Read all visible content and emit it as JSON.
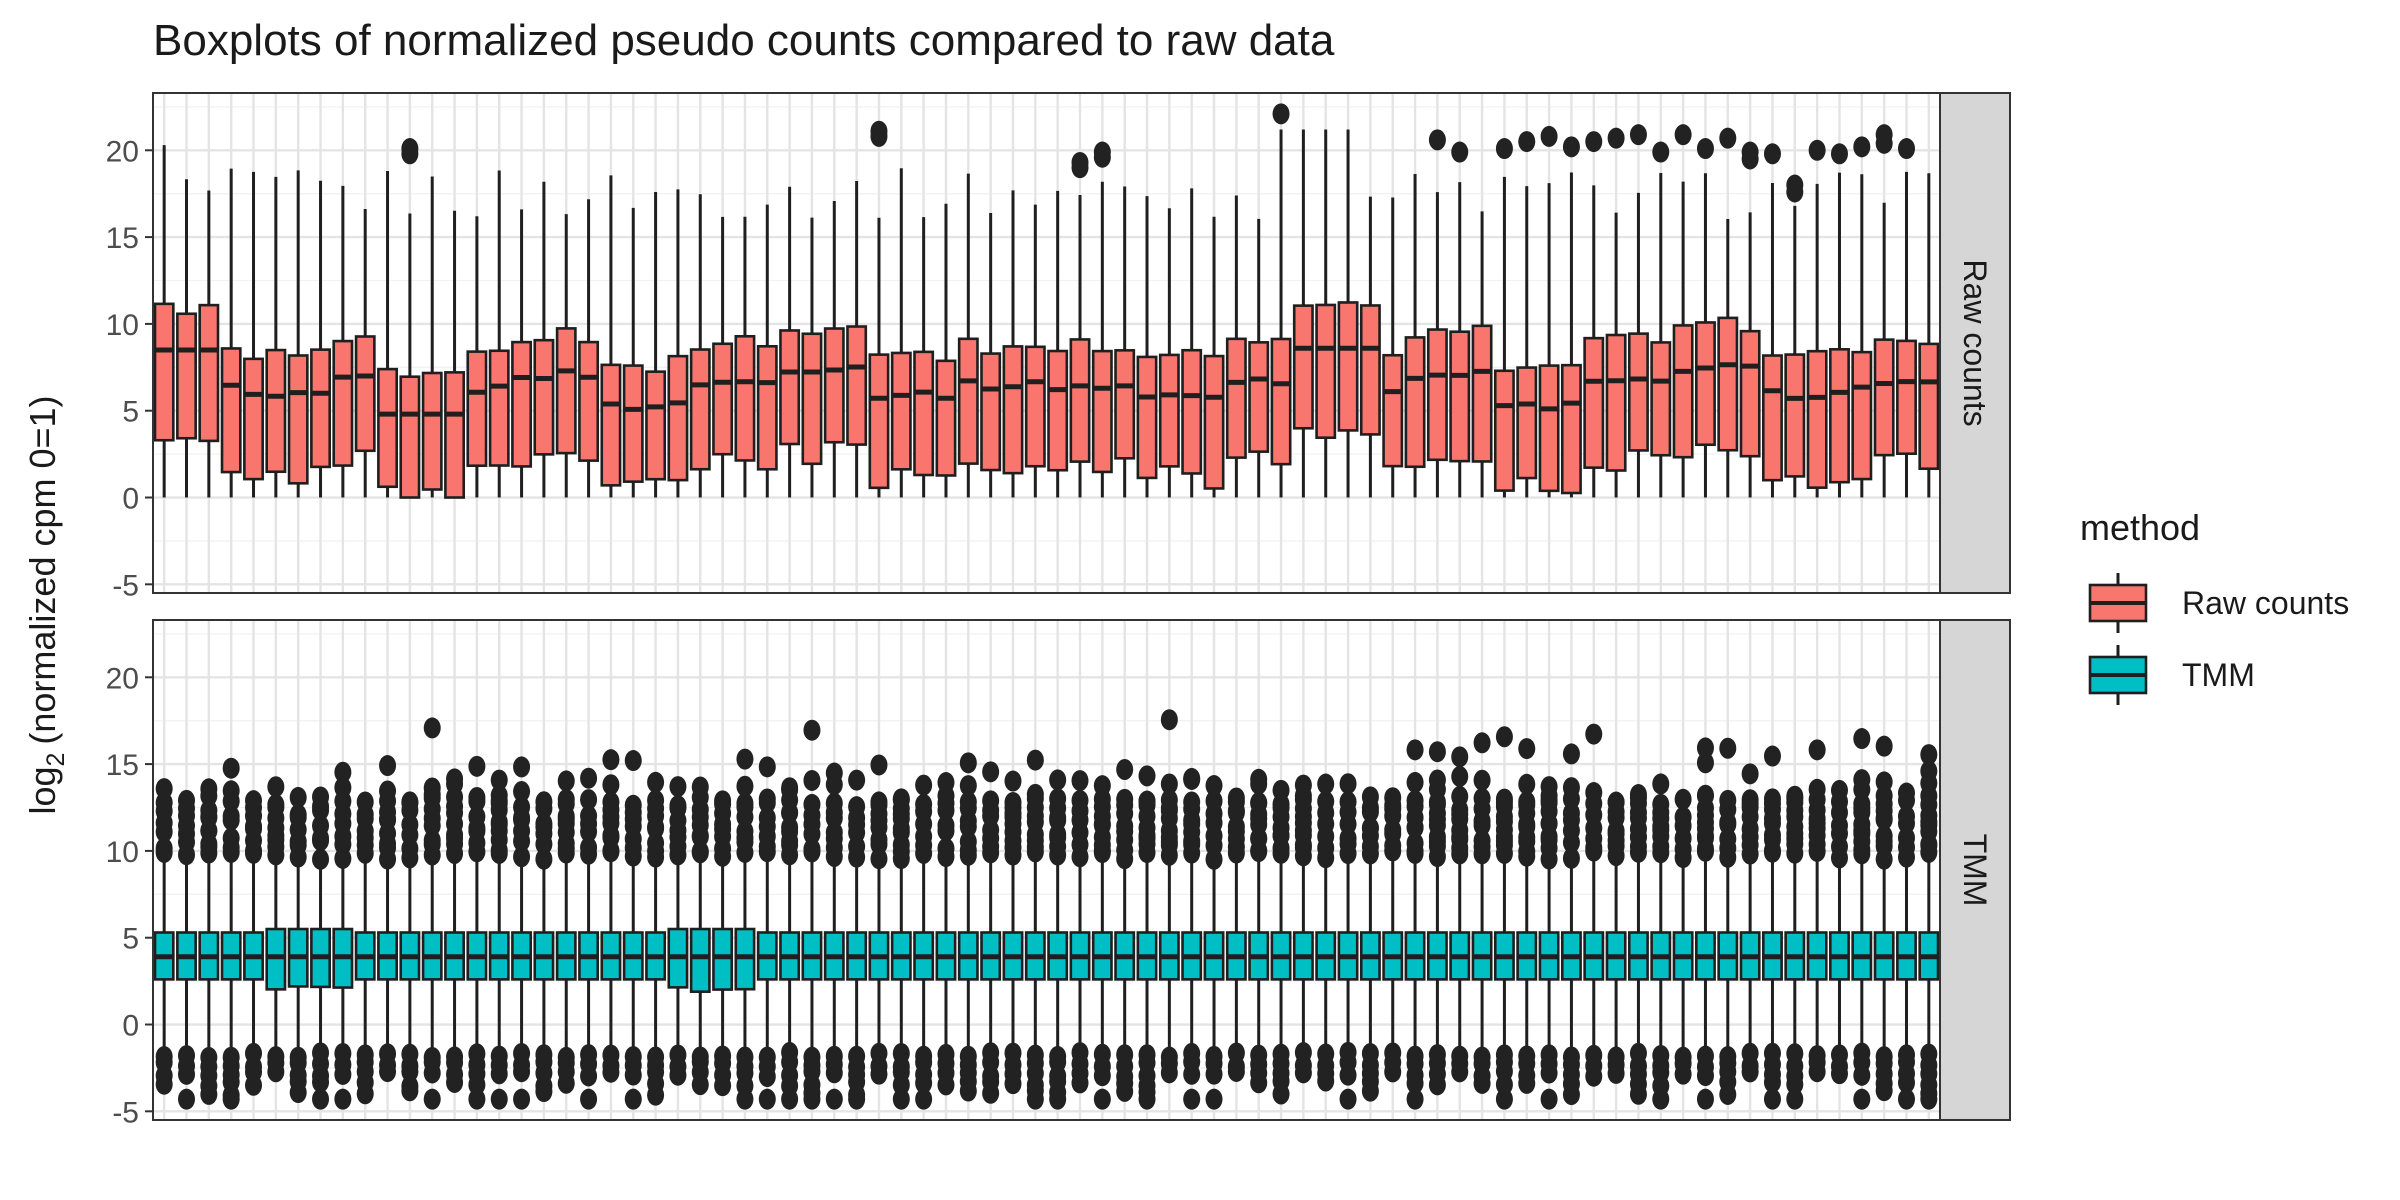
{
  "chart_data": {
    "type": "boxplot",
    "title": "Boxplots of normalized pseudo counts compared to raw data",
    "ylabel": {
      "prefix": "log",
      "subscript": "2",
      "suffix": "(normalized cpm  0=1)"
    },
    "ylim": [
      -5.5,
      23.3
    ],
    "yticks": [
      "-5",
      "0",
      "5",
      "10",
      "15",
      "20"
    ],
    "ytick_values": [
      -5,
      0,
      5,
      10,
      15,
      20
    ],
    "grid": true,
    "n_samples": 80,
    "x_tick_labels": "none",
    "legend": {
      "title": "method",
      "position": "right",
      "entries": [
        {
          "label": "Raw counts",
          "color": "#F8766D"
        },
        {
          "label": "TMM",
          "color": "#00BFC4"
        }
      ]
    },
    "facets": [
      {
        "strip_label": "Raw counts",
        "fill": "#F8766D",
        "box_summary_approx": {
          "whisker_low": 0,
          "q1_range": [
            0,
            3.2
          ],
          "median_range": [
            4.6,
            8.8
          ],
          "q3_range": [
            7.6,
            11
          ],
          "whisker_high_range": [
            15.6,
            21.5
          ]
        },
        "outliers_approx": [
          {
            "sample_index": 11,
            "values": [
              19.8,
              20.1
            ]
          },
          {
            "sample_index": 32,
            "values": [
              20.8,
              21.1
            ]
          },
          {
            "sample_index": 41,
            "values": [
              19,
              19.3
            ]
          },
          {
            "sample_index": 42,
            "values": [
              19.6,
              19.9
            ]
          },
          {
            "sample_index": 50,
            "values": [
              22.1
            ]
          },
          {
            "sample_index": 57,
            "values": [
              20.6
            ]
          },
          {
            "sample_index": 58,
            "values": [
              19.9
            ]
          },
          {
            "sample_index": 60,
            "values": [
              20.1
            ]
          },
          {
            "sample_index": 61,
            "values": [
              20.5
            ]
          },
          {
            "sample_index": 62,
            "values": [
              20.8
            ]
          },
          {
            "sample_index": 63,
            "values": [
              20.2
            ]
          },
          {
            "sample_index": 64,
            "values": [
              20.5
            ]
          },
          {
            "sample_index": 65,
            "values": [
              20.7
            ]
          },
          {
            "sample_index": 66,
            "values": [
              20.9
            ]
          },
          {
            "sample_index": 67,
            "values": [
              19.9
            ]
          },
          {
            "sample_index": 68,
            "values": [
              20.9
            ]
          },
          {
            "sample_index": 69,
            "values": [
              20.1
            ]
          },
          {
            "sample_index": 70,
            "values": [
              20.7
            ]
          },
          {
            "sample_index": 71,
            "values": [
              19.5,
              19.9
            ]
          },
          {
            "sample_index": 72,
            "values": [
              19.8
            ]
          },
          {
            "sample_index": 73,
            "values": [
              17.6,
              18
            ]
          },
          {
            "sample_index": 74,
            "values": [
              20
            ]
          },
          {
            "sample_index": 75,
            "values": [
              19.8
            ]
          },
          {
            "sample_index": 76,
            "values": [
              20.2
            ]
          },
          {
            "sample_index": 77,
            "values": [
              20.4,
              20.9
            ]
          },
          {
            "sample_index": 78,
            "values": [
              20.1
            ]
          }
        ]
      },
      {
        "strip_label": "TMM",
        "fill": "#00BFC4",
        "box_summary_approx": {
          "whisker_low": -3,
          "q1": 2.6,
          "median": 3.9,
          "q3": 5.3,
          "whisker_high": 9.6
        },
        "outliers_approx": {
          "high_band": [
            9.5,
            15.2
          ],
          "high_extreme": [
            15.5,
            17.9
          ],
          "low_band": [
            -3.6,
            -1.5
          ],
          "low_extreme": -4.3
        }
      }
    ]
  }
}
